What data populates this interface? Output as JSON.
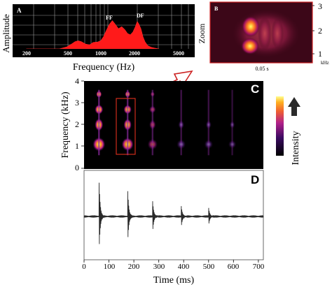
{
  "panelA": {
    "letter": "A",
    "ylabel": "Amplitude",
    "xlabel": "Frequency (Hz)",
    "ticks": [
      "200",
      "500",
      "1000",
      "2000",
      "5000"
    ],
    "annotations": [
      "FF",
      "DF"
    ],
    "spectrum": [
      [
        200,
        0
      ],
      [
        300,
        0
      ],
      [
        400,
        0
      ],
      [
        470,
        0.05
      ],
      [
        520,
        0.12
      ],
      [
        560,
        0.18
      ],
      [
        600,
        0.2
      ],
      [
        640,
        0.18
      ],
      [
        700,
        0.12
      ],
      [
        760,
        0.1
      ],
      [
        820,
        0.16
      ],
      [
        900,
        0.17
      ],
      [
        960,
        0.2
      ],
      [
        1020,
        0.3
      ],
      [
        1080,
        0.45
      ],
      [
        1150,
        0.6
      ],
      [
        1230,
        0.7
      ],
      [
        1300,
        0.62
      ],
      [
        1400,
        0.5
      ],
      [
        1500,
        0.55
      ],
      [
        1600,
        0.48
      ],
      [
        1700,
        0.38
      ],
      [
        1800,
        0.35
      ],
      [
        1900,
        0.42
      ],
      [
        2000,
        0.55
      ],
      [
        2080,
        0.68
      ],
      [
        2150,
        0.62
      ],
      [
        2250,
        0.5
      ],
      [
        2350,
        0.3
      ],
      [
        2450,
        0.18
      ],
      [
        2600,
        0.08
      ],
      [
        2800,
        0.04
      ],
      [
        3000,
        0.02
      ],
      [
        3300,
        0
      ]
    ]
  },
  "panelB": {
    "letter": "B",
    "ylabel": "Zoom",
    "ticks": [
      "1",
      "2",
      "3"
    ],
    "unit": "kHz",
    "timescale": "0.05 s"
  },
  "panelC": {
    "letter": "C",
    "ylabel": "Frequency (kHz)",
    "ticks": [
      "0",
      "1",
      "2",
      "3",
      "4"
    ],
    "colorbar_label": "Intensity",
    "pulse_times_ms": [
      60,
      175,
      275,
      390,
      500,
      595
    ]
  },
  "panelD": {
    "letter": "D",
    "xlabel": "Time (ms)",
    "ticks": [
      "0",
      "100",
      "200",
      "300",
      "400",
      "500",
      "600",
      "700"
    ],
    "pulse_times_ms": [
      60,
      175,
      275,
      390,
      500
    ],
    "pulse_amplitudes": [
      1.0,
      0.75,
      0.45,
      0.3,
      0.25
    ]
  }
}
